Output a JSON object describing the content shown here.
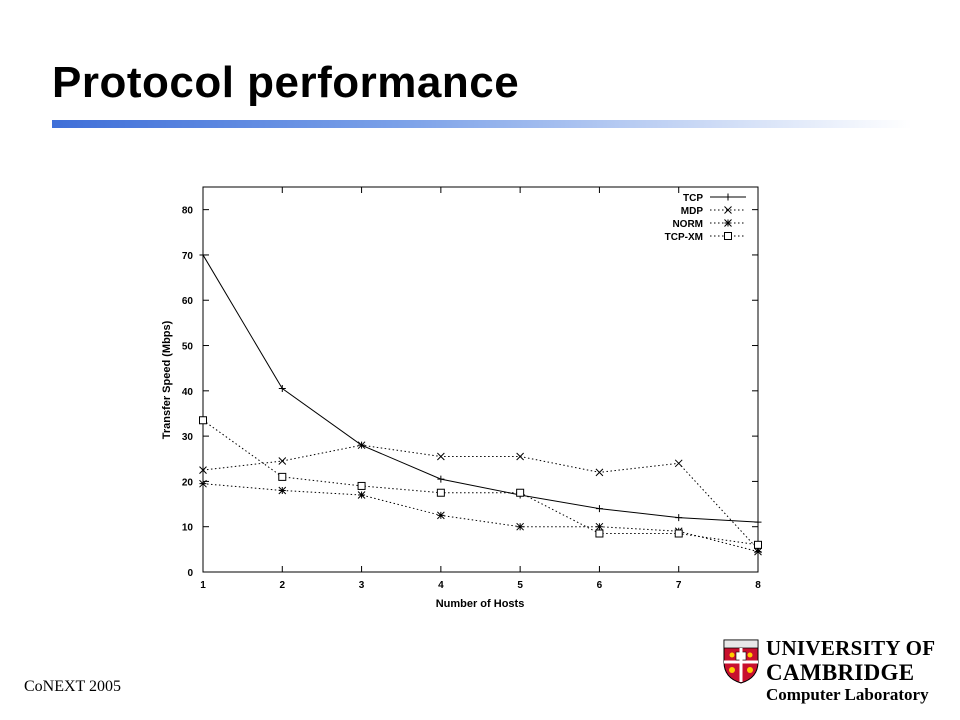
{
  "slide": {
    "title": "Protocol performance",
    "footer": "CoNEXT 2005"
  },
  "logo": {
    "line1": "UNIVERSITY OF",
    "line2": "CAMBRIDGE",
    "line3": "Computer Laboratory",
    "shield_icon": "cambridge-crest-icon"
  },
  "colors": {
    "title_rule": "#3f6fd8",
    "lines": "#000000"
  },
  "chart_data": {
    "type": "line",
    "xlabel": "Number of Hosts",
    "ylabel": "Transfer Speed (Mbps)",
    "x": [
      1,
      2,
      3,
      4,
      5,
      6,
      7,
      8
    ],
    "xlim": [
      1,
      8
    ],
    "ylim": [
      0,
      85
    ],
    "xticks": [
      1,
      2,
      3,
      4,
      5,
      6,
      7,
      8
    ],
    "yticks": [
      0,
      10,
      20,
      30,
      40,
      50,
      60,
      70,
      80
    ],
    "grid": false,
    "legend_position": "top-right",
    "series": [
      {
        "name": "TCP",
        "marker": "plus",
        "dash": "solid",
        "values": [
          70,
          40.5,
          28,
          20.5,
          17,
          14,
          12,
          11
        ]
      },
      {
        "name": "MDP",
        "marker": "cross",
        "dash": "dotted",
        "values": [
          22.5,
          24.5,
          28,
          25.5,
          25.5,
          22,
          24,
          5
        ]
      },
      {
        "name": "NORM",
        "marker": "star",
        "dash": "dotted",
        "values": [
          19.5,
          18,
          17,
          12.5,
          10,
          10,
          9,
          4.5
        ]
      },
      {
        "name": "TCP-XM",
        "marker": "square",
        "dash": "dotted",
        "values": [
          33.5,
          21,
          19,
          17.5,
          17.5,
          8.5,
          8.5,
          6
        ]
      }
    ]
  }
}
